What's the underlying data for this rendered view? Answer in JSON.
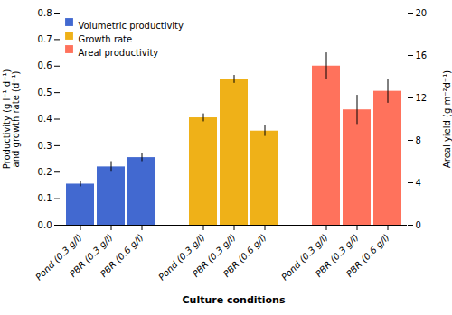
{
  "chart_data": {
    "type": "bar",
    "xlabel": "Culture conditions",
    "ylabel": "Productivity (g l⁻¹ d⁻¹)\nand growth rate (d⁻¹)",
    "y2label": "Areal yield (g m⁻²d⁻¹)",
    "categories": [
      "Pond (0.3 g/l)",
      "PBR (0.3 g/l)",
      "PBR (0.6 g/l)"
    ],
    "series": [
      {
        "name": "Volumetric productivity",
        "values": [
          0.155,
          0.22,
          0.255
        ],
        "errors": [
          0.01,
          0.02,
          0.015
        ]
      },
      {
        "name": "Growth rate",
        "values": [
          0.405,
          0.55,
          0.355
        ],
        "errors": [
          0.015,
          0.015,
          0.02
        ]
      },
      {
        "name": "Areal productivity",
        "values": [
          0.6,
          0.435,
          0.505
        ],
        "errors": [
          0.05,
          0.055,
          0.045
        ]
      }
    ],
    "ylim": [
      0.0,
      0.8
    ],
    "yticks": [
      {
        "value": 0,
        "label": "0.0"
      },
      0.1,
      0.2,
      0.3,
      0.4,
      0.5,
      0.6,
      0.7,
      0.8
    ],
    "y2lim": [
      0,
      20
    ],
    "y2ticks": [
      0,
      4,
      8,
      12,
      16,
      20
    ],
    "legend": "upper left"
  }
}
